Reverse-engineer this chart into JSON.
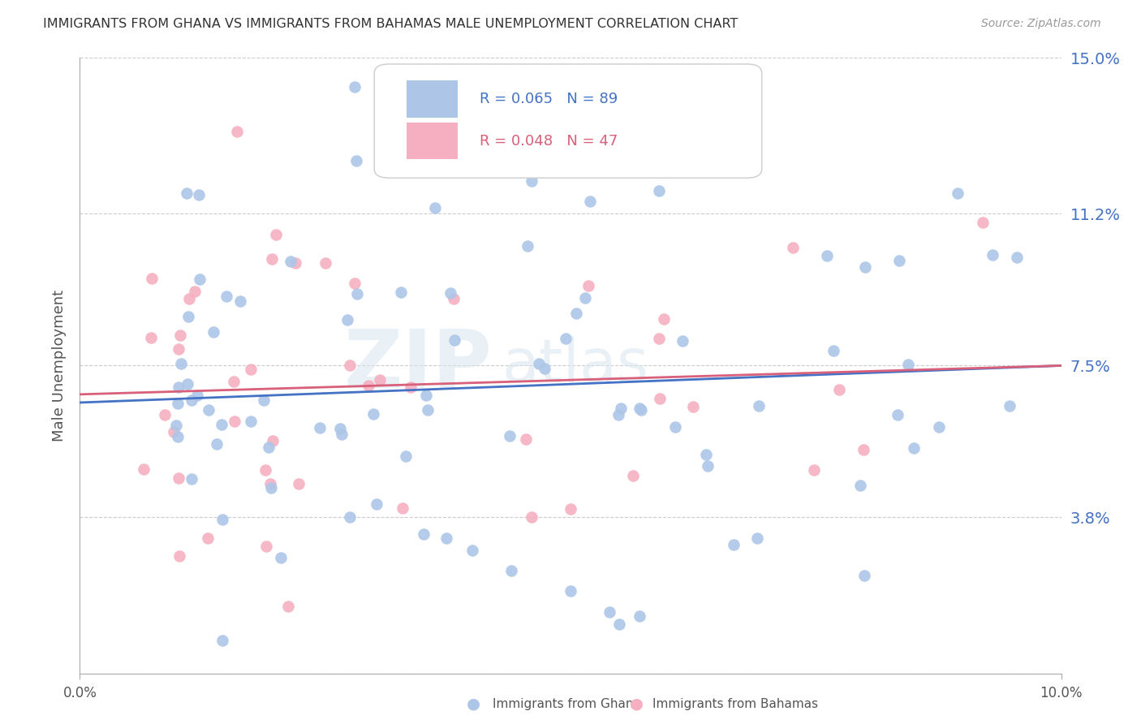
{
  "title": "IMMIGRANTS FROM GHANA VS IMMIGRANTS FROM BAHAMAS MALE UNEMPLOYMENT CORRELATION CHART",
  "source": "Source: ZipAtlas.com",
  "ylabel": "Male Unemployment",
  "x_min": 0.0,
  "x_max": 0.1,
  "y_min": 0.0,
  "y_max": 0.15,
  "y_tick_positions": [
    0.0,
    0.038,
    0.075,
    0.112,
    0.15
  ],
  "y_tick_labels": [
    "",
    "3.8%",
    "7.5%",
    "11.2%",
    "15.0%"
  ],
  "watermark_zip": "ZIP",
  "watermark_atlas": "atlas",
  "ghana_color": "#adc6e8",
  "bahamas_color": "#f5afc0",
  "ghana_line_color": "#4472c4",
  "bahamas_line_color": "#d9607a",
  "ghana_R": 0.065,
  "ghana_N": 89,
  "bahamas_R": 0.048,
  "bahamas_N": 47,
  "ghana_intercept": 0.066,
  "bahamas_intercept": 0.068,
  "background_color": "#ffffff",
  "grid_color": "#cccccc",
  "right_label_color": "#4472c4",
  "legend_ghana_color": "#adc6e8",
  "legend_bahamas_color": "#f5afc0",
  "legend_text_ghana_color": "#4472c4",
  "legend_text_bahamas_color": "#d9607a"
}
